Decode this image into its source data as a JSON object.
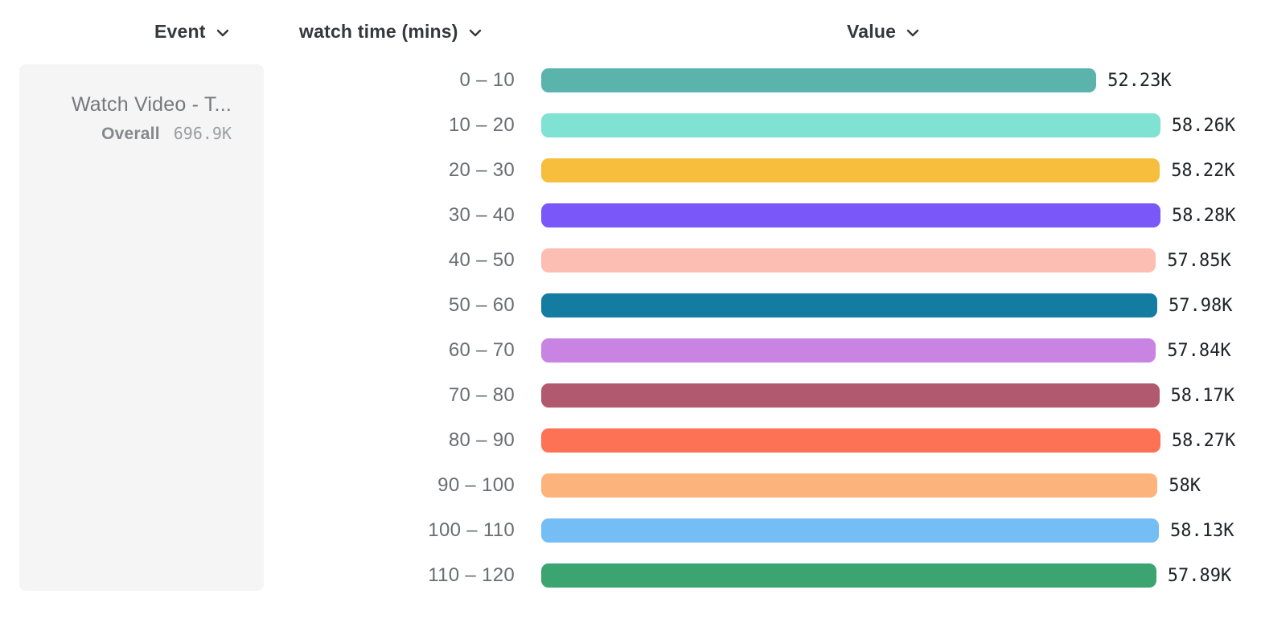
{
  "header": {
    "columns": [
      {
        "label": "Event"
      },
      {
        "label": "watch time (mins)"
      },
      {
        "label": "Value"
      }
    ]
  },
  "event_card": {
    "title": "Watch Video - T...",
    "overall_label": "Overall",
    "overall_value": "696.9K"
  },
  "chart_data": {
    "type": "bar",
    "orientation": "horizontal",
    "title": "",
    "xlabel": "Value",
    "ylabel": "watch time (mins)",
    "xlim": [
      0,
      58280
    ],
    "grid": false,
    "categories": [
      "0 – 10",
      "10 – 20",
      "20 – 30",
      "30 – 40",
      "40 – 50",
      "50 – 60",
      "60 – 70",
      "70 – 80",
      "80 – 90",
      "90 – 100",
      "100 – 110",
      "110 – 120"
    ],
    "values": [
      52230,
      58260,
      58220,
      58280,
      57850,
      57980,
      57840,
      58170,
      58270,
      58000,
      58130,
      57890
    ],
    "value_labels": [
      "52.23K",
      "58.26K",
      "58.22K",
      "58.28K",
      "57.85K",
      "57.98K",
      "57.84K",
      "58.17K",
      "58.27K",
      "58K",
      "58.13K",
      "57.89K"
    ],
    "bar_colors": [
      "#5ab4ac",
      "#7fe2d3",
      "#f7bd3d",
      "#7a57f8",
      "#fcbdb2",
      "#137ca0",
      "#c983e2",
      "#b0596f",
      "#fd7154",
      "#fdb37c",
      "#74bdf5",
      "#3ca470"
    ]
  },
  "colors": {
    "header_text": "#33383d",
    "card_bg": "#f5f5f6",
    "category_text": "#696e73",
    "value_text": "#202428"
  }
}
